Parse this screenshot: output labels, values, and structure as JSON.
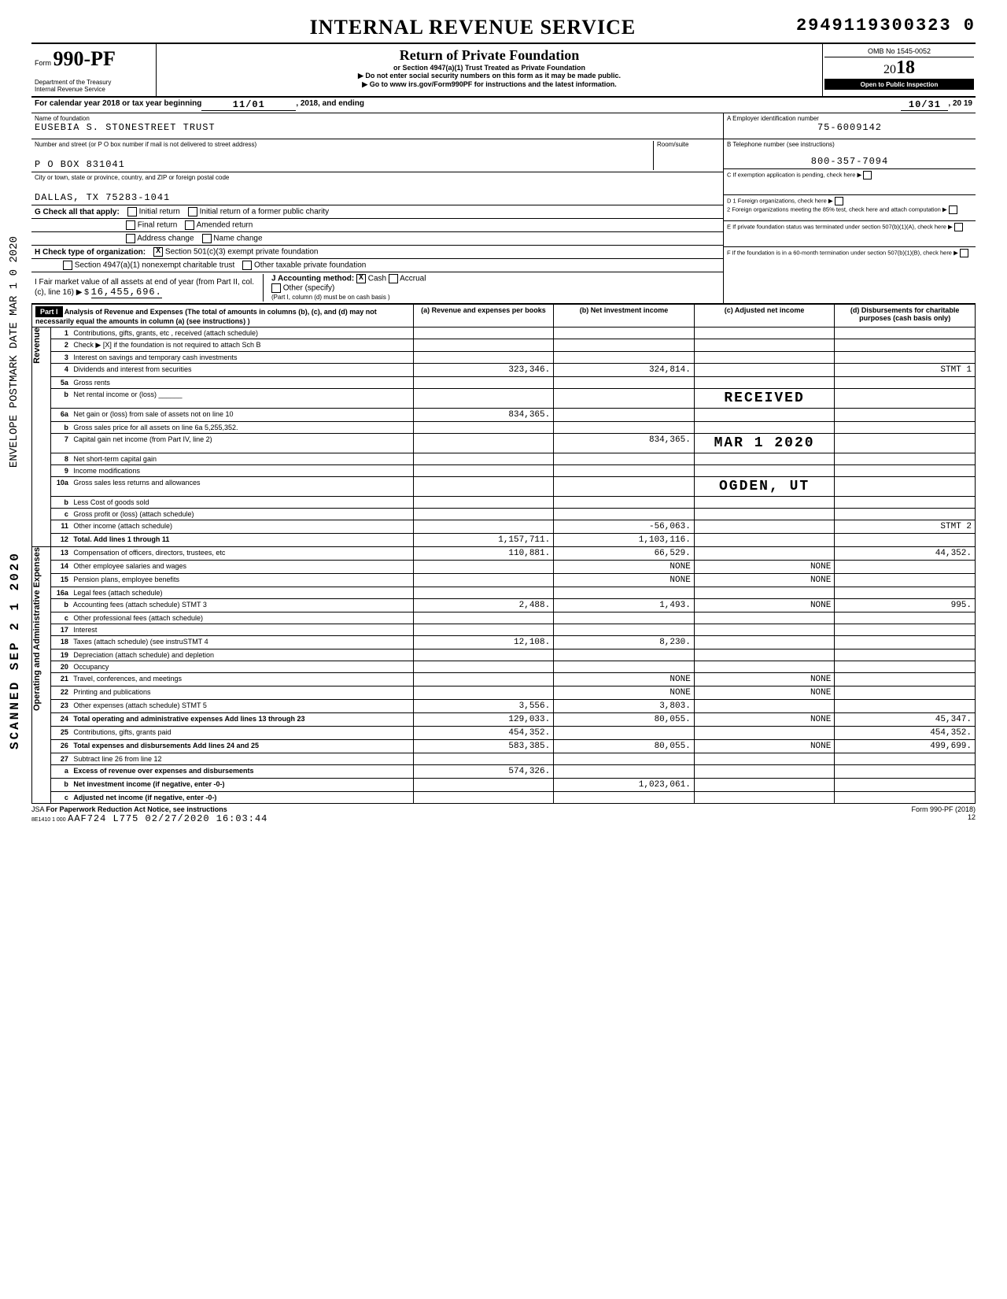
{
  "header": {
    "irs_title": "INTERNAL REVENUE SERVICE",
    "dln": "2949119300323  0",
    "form_prefix": "Form",
    "form_number": "990-PF",
    "dept1": "Department of the Treasury",
    "dept2": "Internal Revenue Service",
    "title": "Return of Private Foundation",
    "subtitle1": "or Section 4947(a)(1) Trust Treated as Private Foundation",
    "subtitle2": "▶ Do not enter social security numbers on this form as it may be made public.",
    "subtitle3": "▶ Go to www irs.gov/Form990PF for instructions and the latest information.",
    "omb": "OMB No 1545-0052",
    "year": "2018",
    "year_prefix": "20",
    "year_suffix": "18",
    "inspection": "Open to Public Inspection"
  },
  "period": {
    "label": "For calendar year 2018 or tax year beginning",
    "begin": "11/01",
    "mid": ", 2018, and ending",
    "end": "10/31",
    "end_year": ", 20 19"
  },
  "foundation": {
    "name_label": "Name of foundation",
    "name": "EUSEBIA S. STONESTREET TRUST",
    "addr_label": "Number and street (or P O box number if mail is not delivered to street address)",
    "addr": "P O BOX 831041",
    "room_label": "Room/suite",
    "city_label": "City or town, state or province, country, and ZIP or foreign postal code",
    "city": "DALLAS, TX 75283-1041",
    "ein_label": "A  Employer identification number",
    "ein": "75-6009142",
    "phone_label": "B  Telephone number (see instructions)",
    "phone": "800-357-7094",
    "c_label": "C  If exemption application is pending, check here",
    "d1": "D 1 Foreign organizations, check here",
    "d2": "2 Foreign organizations meeting the 85% test, check here and attach computation",
    "e_label": "E  If private foundation status was terminated under section 507(b)(1)(A), check here",
    "f_label": "F  If the foundation is in a 60-month termination under section 507(b)(1)(B), check here"
  },
  "checks": {
    "g_label": "G Check all that apply:",
    "initial": "Initial return",
    "initial_former": "Initial return of a former public charity",
    "final": "Final return",
    "amended": "Amended return",
    "addr_change": "Address change",
    "name_change": "Name change",
    "h_label": "H Check type of organization:",
    "h1": "Section 501(c)(3) exempt private foundation",
    "h1_x": "X",
    "h2": "Section 4947(a)(1) nonexempt charitable trust",
    "h3": "Other taxable private foundation",
    "i_label": "I  Fair market value of all assets at end of year (from Part II, col. (c), line 16) ▶ $",
    "i_value": "16,455,696.",
    "j_label": "J Accounting method:",
    "j_cash": "Cash",
    "j_cash_x": "X",
    "j_accrual": "Accrual",
    "j_other": "Other (specify)",
    "j_note": "(Part I, column (d) must be on cash basis )"
  },
  "part1": {
    "hdr": "Part I",
    "desc": "Analysis of Revenue and Expenses (The total of amounts in columns (b), (c), and (d) may not necessarily equal the amounts in column (a) (see instructions) )",
    "col_a": "(a) Revenue and expenses per books",
    "col_b": "(b) Net investment income",
    "col_c": "(c) Adjusted net income",
    "col_d": "(d) Disbursements for charitable purposes (cash basis only)"
  },
  "rows": [
    {
      "n": "1",
      "label": "Contributions, gifts, grants, etc , received (attach schedule)",
      "a": "",
      "b": "",
      "c": "",
      "d": ""
    },
    {
      "n": "2",
      "label": "Check ▶ [X] if the foundation is not required to attach Sch B",
      "a": "",
      "b": "",
      "c": "",
      "d": ""
    },
    {
      "n": "3",
      "label": "Interest on savings and temporary cash investments",
      "a": "",
      "b": "",
      "c": "",
      "d": ""
    },
    {
      "n": "4",
      "label": "Dividends and interest from securities",
      "a": "323,346.",
      "b": "324,814.",
      "c": "",
      "d": "STMT 1"
    },
    {
      "n": "5a",
      "label": "Gross rents",
      "a": "",
      "b": "",
      "c": "",
      "d": ""
    },
    {
      "n": "b",
      "label": "Net rental income or (loss) ______",
      "a": "",
      "b": "",
      "c": "RECEIVED",
      "d": ""
    },
    {
      "n": "6a",
      "label": "Net gain or (loss) from sale of assets not on line 10",
      "a": "834,365.",
      "b": "",
      "c": "",
      "d": ""
    },
    {
      "n": "b",
      "label": "Gross sales price for all assets on line 6a   5,255,352.",
      "a": "",
      "b": "",
      "c": "",
      "d": ""
    },
    {
      "n": "7",
      "label": "Capital gain net income (from Part IV, line 2)",
      "a": "",
      "b": "834,365.",
      "c": "MAR 1  2020",
      "d": ""
    },
    {
      "n": "8",
      "label": "Net short-term capital gain",
      "a": "",
      "b": "",
      "c": "",
      "d": ""
    },
    {
      "n": "9",
      "label": "Income modifications",
      "a": "",
      "b": "",
      "c": "",
      "d": ""
    },
    {
      "n": "10a",
      "label": "Gross sales less returns and allowances",
      "a": "",
      "b": "",
      "c": "OGDEN, UT",
      "d": ""
    },
    {
      "n": "b",
      "label": "Less Cost of goods sold",
      "a": "",
      "b": "",
      "c": "",
      "d": ""
    },
    {
      "n": "c",
      "label": "Gross profit or (loss) (attach schedule)",
      "a": "",
      "b": "",
      "c": "",
      "d": ""
    },
    {
      "n": "11",
      "label": "Other income (attach schedule)",
      "a": "",
      "b": "-56,063.",
      "c": "",
      "d": "STMT 2"
    },
    {
      "n": "12",
      "label": "Total. Add lines 1 through 11",
      "a": "1,157,711.",
      "b": "1,103,116.",
      "c": "",
      "d": "",
      "bold": true
    },
    {
      "n": "13",
      "label": "Compensation of officers, directors, trustees, etc",
      "a": "110,881.",
      "b": "66,529.",
      "c": "",
      "d": "44,352."
    },
    {
      "n": "14",
      "label": "Other employee salaries and wages",
      "a": "",
      "b": "NONE",
      "c": "NONE",
      "d": ""
    },
    {
      "n": "15",
      "label": "Pension plans, employee benefits",
      "a": "",
      "b": "NONE",
      "c": "NONE",
      "d": ""
    },
    {
      "n": "16a",
      "label": "Legal fees (attach schedule)",
      "a": "",
      "b": "",
      "c": "",
      "d": ""
    },
    {
      "n": "b",
      "label": "Accounting fees (attach schedule) STMT 3",
      "a": "2,488.",
      "b": "1,493.",
      "c": "NONE",
      "d": "995."
    },
    {
      "n": "c",
      "label": "Other professional fees (attach schedule)",
      "a": "",
      "b": "",
      "c": "",
      "d": ""
    },
    {
      "n": "17",
      "label": "Interest",
      "a": "",
      "b": "",
      "c": "",
      "d": ""
    },
    {
      "n": "18",
      "label": "Taxes (attach schedule) (see instruSTMT 4",
      "a": "12,108.",
      "b": "8,230.",
      "c": "",
      "d": ""
    },
    {
      "n": "19",
      "label": "Depreciation (attach schedule) and depletion",
      "a": "",
      "b": "",
      "c": "",
      "d": ""
    },
    {
      "n": "20",
      "label": "Occupancy",
      "a": "",
      "b": "",
      "c": "",
      "d": ""
    },
    {
      "n": "21",
      "label": "Travel, conferences, and meetings",
      "a": "",
      "b": "NONE",
      "c": "NONE",
      "d": ""
    },
    {
      "n": "22",
      "label": "Printing and publications",
      "a": "",
      "b": "NONE",
      "c": "NONE",
      "d": ""
    },
    {
      "n": "23",
      "label": "Other expenses (attach schedule) STMT 5",
      "a": "3,556.",
      "b": "3,803.",
      "c": "",
      "d": ""
    },
    {
      "n": "24",
      "label": "Total operating and administrative expenses Add lines 13 through 23",
      "a": "129,033.",
      "b": "80,055.",
      "c": "NONE",
      "d": "45,347.",
      "bold": true
    },
    {
      "n": "25",
      "label": "Contributions, gifts, grants paid",
      "a": "454,352.",
      "b": "",
      "c": "",
      "d": "454,352."
    },
    {
      "n": "26",
      "label": "Total expenses and disbursements Add lines 24 and 25",
      "a": "583,385.",
      "b": "80,055.",
      "c": "NONE",
      "d": "499,699.",
      "bold": true
    },
    {
      "n": "27",
      "label": "Subtract line 26 from line 12",
      "a": "",
      "b": "",
      "c": "",
      "d": ""
    },
    {
      "n": "a",
      "label": "Excess of revenue over expenses and disbursements",
      "a": "574,326.",
      "b": "",
      "c": "",
      "d": "",
      "bold": true
    },
    {
      "n": "b",
      "label": "Net investment income (if negative, enter -0-)",
      "a": "",
      "b": "1,023,061.",
      "c": "",
      "d": "",
      "bold": true
    },
    {
      "n": "c",
      "label": "Adjusted net income (if negative, enter -0-)",
      "a": "",
      "b": "",
      "c": "",
      "d": "",
      "bold": true
    }
  ],
  "section_labels": {
    "revenue": "Revenue",
    "expenses": "Operating and Administrative Expenses"
  },
  "footer": {
    "jsa": "JSA",
    "notice": "For Paperwork Reduction Act Notice, see instructions",
    "code": "8E1410 1 000",
    "batch": "AAF724 L775  02/27/2020 16:03:44",
    "form_ref": "Form 990-PF (2018)",
    "page": "12"
  },
  "side": {
    "envelope": "ENVELOPE\nPOSTMARK DATE MAR 1 0 2020",
    "scanned": "SCANNED SEP 2 1 2020"
  }
}
